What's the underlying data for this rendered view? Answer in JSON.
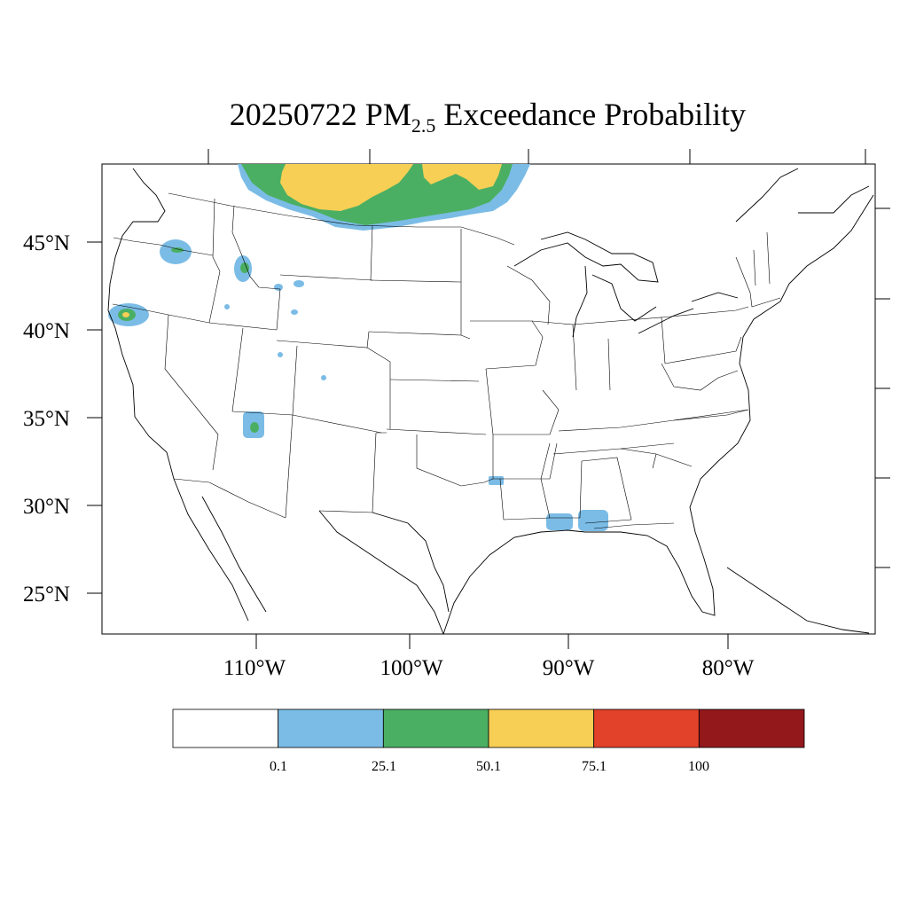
{
  "title": {
    "date": "20250722",
    "pollutant": "PM",
    "subscript": "2.5",
    "rest": "Exceedance Probability"
  },
  "map": {
    "region": "Contiguous United States",
    "lat_labels": [
      "45°N",
      "40°N",
      "35°N",
      "30°N",
      "25°N"
    ],
    "lon_labels": [
      "110°W",
      "100°W",
      "90°W",
      "80°W"
    ]
  },
  "legend": {
    "bins": [
      {
        "from": null,
        "to": 0.1,
        "color": "#ffffff"
      },
      {
        "from": 0.1,
        "to": 25.1,
        "color": "#7bbce6"
      },
      {
        "from": 25.1,
        "to": 50.1,
        "color": "#4baf63"
      },
      {
        "from": 50.1,
        "to": 75.1,
        "color": "#f8cf55"
      },
      {
        "from": 75.1,
        "to": 100,
        "color": "#e2412a"
      },
      {
        "from": 100,
        "to": null,
        "color": "#93181c"
      }
    ],
    "tick_labels": [
      "0.1",
      "25.1",
      "50.1",
      "75.1",
      "100"
    ]
  },
  "probability_areas": [
    {
      "name": "Canadian border smoke plume (MT/ND)",
      "max_category": "50.1-75.1"
    },
    {
      "name": "Northern California / Oregon border",
      "max_category": "50.1-75.1"
    },
    {
      "name": "Northeast Oregon",
      "max_category": "25.1-50.1"
    },
    {
      "name": "Central Idaho",
      "max_category": "25.1-50.1"
    },
    {
      "name": "Southern Utah / Northern Arizona",
      "max_category": "25.1-50.1"
    },
    {
      "name": "East Texas / Louisiana",
      "max_category": "0.1-25.1"
    },
    {
      "name": "Southern Mississippi / Alabama coast",
      "max_category": "0.1-25.1"
    }
  ]
}
